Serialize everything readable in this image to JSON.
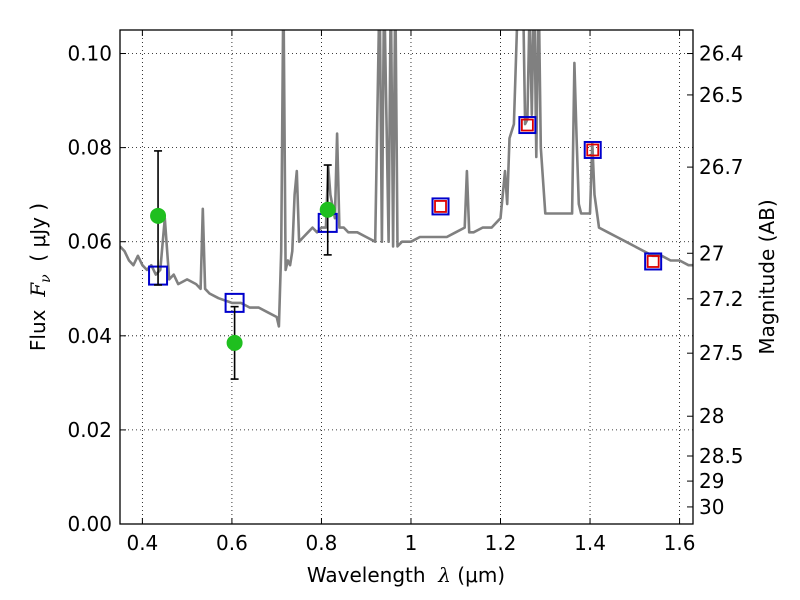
{
  "chart_data": {
    "type": "scatter",
    "title": "",
    "xlabel": "Wavelength  λ (μm)",
    "xlabel_parts": {
      "prefix": "Wavelength  ",
      "sym": "λ",
      "unit": " (μm)"
    },
    "ylabel": "Flux  Fν  ( μJy )",
    "ylabel_parts": {
      "prefix": "Flux  ",
      "sym": "F",
      "sub": "ν",
      "unit": "  ( μJy )"
    },
    "y2label": "Magnitude (AB)",
    "xlim": [
      0.35,
      1.63
    ],
    "ylim": [
      0.0,
      0.105
    ],
    "grid": "dotted",
    "x_ticks": [
      {
        "v": 0.4,
        "label": "0.4"
      },
      {
        "v": 0.6,
        "label": "0.6"
      },
      {
        "v": 0.8,
        "label": "0.8"
      },
      {
        "v": 1.0,
        "label": "1"
      },
      {
        "v": 1.2,
        "label": "1.2"
      },
      {
        "v": 1.4,
        "label": "1.4"
      },
      {
        "v": 1.6,
        "label": "1.6"
      }
    ],
    "y_ticks": [
      {
        "v": 0.0,
        "label": "0.00"
      },
      {
        "v": 0.02,
        "label": "0.02"
      },
      {
        "v": 0.04,
        "label": "0.04"
      },
      {
        "v": 0.06,
        "label": "0.06"
      },
      {
        "v": 0.08,
        "label": "0.08"
      },
      {
        "v": 0.1,
        "label": "0.10"
      }
    ],
    "y2_ticks": [
      {
        "mag": 26.4,
        "label": "26.4"
      },
      {
        "mag": 26.5,
        "label": "26.5"
      },
      {
        "mag": 26.7,
        "label": "26.7"
      },
      {
        "mag": 27,
        "label": "27"
      },
      {
        "mag": 27.2,
        "label": "27.2"
      },
      {
        "mag": 27.5,
        "label": "27.5"
      },
      {
        "mag": 28,
        "label": "28"
      },
      {
        "mag": 28.5,
        "label": "28.5"
      },
      {
        "mag": 29,
        "label": "29"
      },
      {
        "mag": 30,
        "label": "30"
      }
    ],
    "colors": {
      "sed": "#808080",
      "observed": "#1fbf1f",
      "model_box": "#0000cc",
      "model_inner": "#dd0000",
      "errorbar": "#000000"
    },
    "series": [
      {
        "name": "model spectrum",
        "kind": "line",
        "x": [
          0.35,
          0.36,
          0.37,
          0.38,
          0.39,
          0.4,
          0.41,
          0.42,
          0.43,
          0.44,
          0.45,
          0.46,
          0.47,
          0.48,
          0.5,
          0.52,
          0.53,
          0.535,
          0.54,
          0.55,
          0.57,
          0.6,
          0.62,
          0.64,
          0.66,
          0.68,
          0.7,
          0.705,
          0.71,
          0.715,
          0.72,
          0.725,
          0.73,
          0.735,
          0.74,
          0.745,
          0.75,
          0.76,
          0.77,
          0.78,
          0.79,
          0.8,
          0.81,
          0.815,
          0.82,
          0.83,
          0.835,
          0.84,
          0.85,
          0.86,
          0.88,
          0.9,
          0.92,
          0.93,
          0.935,
          0.94,
          0.95,
          0.955,
          0.96,
          0.965,
          0.97,
          0.98,
          1.0,
          1.02,
          1.04,
          1.06,
          1.08,
          1.1,
          1.12,
          1.125,
          1.13,
          1.14,
          1.16,
          1.18,
          1.2,
          1.21,
          1.215,
          1.22,
          1.23,
          1.24,
          1.25,
          1.255,
          1.26,
          1.265,
          1.27,
          1.275,
          1.28,
          1.285,
          1.29,
          1.3,
          1.32,
          1.34,
          1.36,
          1.365,
          1.37,
          1.375,
          1.38,
          1.4,
          1.405,
          1.41,
          1.42,
          1.44,
          1.46,
          1.48,
          1.5,
          1.52,
          1.54,
          1.56,
          1.58,
          1.6,
          1.62,
          1.63
        ],
        "y": [
          0.059,
          0.058,
          0.056,
          0.055,
          0.057,
          0.055,
          0.054,
          0.055,
          0.053,
          0.054,
          0.065,
          0.052,
          0.053,
          0.051,
          0.052,
          0.051,
          0.05,
          0.067,
          0.05,
          0.049,
          0.048,
          0.047,
          0.047,
          0.046,
          0.046,
          0.045,
          0.044,
          0.042,
          0.058,
          0.115,
          0.054,
          0.056,
          0.055,
          0.058,
          0.07,
          0.075,
          0.06,
          0.061,
          0.062,
          0.063,
          0.062,
          0.063,
          0.063,
          0.076,
          0.07,
          0.065,
          0.083,
          0.063,
          0.063,
          0.062,
          0.062,
          0.061,
          0.06,
          0.115,
          0.06,
          0.115,
          0.06,
          0.115,
          0.059,
          0.115,
          0.059,
          0.06,
          0.06,
          0.061,
          0.061,
          0.061,
          0.061,
          0.062,
          0.063,
          0.075,
          0.062,
          0.062,
          0.063,
          0.063,
          0.065,
          0.075,
          0.068,
          0.082,
          0.085,
          0.115,
          0.115,
          0.085,
          0.086,
          0.11,
          0.087,
          0.115,
          0.078,
          0.115,
          0.08,
          0.066,
          0.066,
          0.066,
          0.066,
          0.098,
          0.082,
          0.068,
          0.066,
          0.066,
          0.081,
          0.07,
          0.063,
          0.062,
          0.061,
          0.06,
          0.059,
          0.058,
          0.057,
          0.057,
          0.056,
          0.056,
          0.055,
          0.055
        ]
      },
      {
        "name": "observed photometry",
        "kind": "points_with_errors",
        "x": [
          0.435,
          0.606,
          0.814
        ],
        "y": [
          0.0655,
          0.0385,
          0.0668
        ],
        "err_lo": [
          0.0508,
          0.0308,
          0.0572
        ],
        "err_hi": [
          0.0793,
          0.0462,
          0.0763
        ]
      },
      {
        "name": "model photometry (optical)",
        "kind": "open_squares",
        "x": [
          0.435,
          0.606,
          0.814
        ],
        "y": [
          0.0528,
          0.047,
          0.064
        ]
      },
      {
        "name": "model photometry (near-IR)",
        "kind": "double_squares",
        "x": [
          1.066,
          1.26,
          1.406,
          1.541
        ],
        "y": [
          0.0675,
          0.0848,
          0.0795,
          0.0558
        ]
      }
    ]
  }
}
